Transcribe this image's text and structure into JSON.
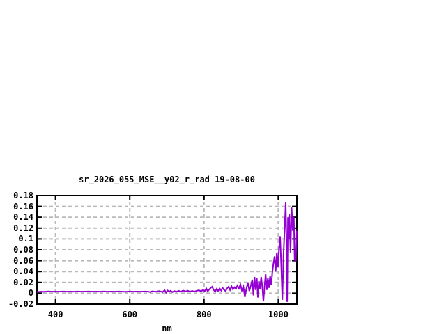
{
  "chart_data": {
    "type": "line",
    "title": "sr_2026_055_MSE__y02_r_rad 19-08-00",
    "xlabel": "nm",
    "ylabel": "",
    "xlim": [
      350,
      1050
    ],
    "ylim": [
      -0.02,
      0.18
    ],
    "xticks": [
      400,
      600,
      800,
      1000
    ],
    "xtick_labels": [
      "400",
      "600",
      "800",
      "1000"
    ],
    "yticks": [
      -0.02,
      0,
      0.02,
      0.04,
      0.06,
      0.08,
      0.1,
      0.12,
      0.14,
      0.16,
      0.18
    ],
    "ytick_labels": [
      "-0.02",
      "0",
      "0.02",
      "0.04",
      "0.06",
      "0.08",
      "0.1",
      "0.12",
      "0.14",
      "0.16",
      "0.18"
    ],
    "grid": true,
    "legend": "none",
    "colors": {
      "line": "#9400d3",
      "frame": "#000000",
      "grid": "#b9b9b9",
      "text": "#000000",
      "background": "#ffffff"
    },
    "series": [
      {
        "name": "sr_2026_055_MSE__y02_r_rad",
        "x": [
          350,
          360,
          370,
          380,
          390,
          400,
          410,
          420,
          430,
          440,
          450,
          460,
          470,
          480,
          490,
          500,
          510,
          520,
          530,
          540,
          550,
          560,
          570,
          580,
          590,
          600,
          610,
          620,
          630,
          640,
          650,
          655,
          660,
          670,
          680,
          688,
          694,
          698,
          702,
          706,
          710,
          715,
          720,
          726,
          732,
          738,
          744,
          750,
          756,
          762,
          768,
          774,
          780,
          786,
          792,
          797,
          802,
          806,
          810,
          814,
          818,
          822,
          826,
          830,
          834,
          838,
          842,
          846,
          850,
          854,
          858,
          862,
          866,
          870,
          874,
          878,
          882,
          886,
          890,
          894,
          898,
          902,
          906,
          910,
          914,
          918,
          922,
          926,
          930,
          933,
          936,
          939,
          942,
          945,
          948,
          951,
          954,
          957,
          960,
          963,
          966,
          969,
          972,
          975,
          978,
          981,
          984,
          987,
          990,
          993,
          996,
          999,
          1002,
          1005,
          1008,
          1011,
          1014,
          1017,
          1020,
          1022,
          1024,
          1026,
          1028,
          1030,
          1033,
          1036,
          1039,
          1042,
          1044,
          1047,
          1050
        ],
        "y": [
          0.002,
          0.003,
          0.0028,
          0.0033,
          0.003,
          0.0031,
          0.003,
          0.0032,
          0.003,
          0.0031,
          0.003,
          0.0032,
          0.003,
          0.0031,
          0.0032,
          0.003,
          0.0031,
          0.003,
          0.0032,
          0.003,
          0.0031,
          0.003,
          0.0032,
          0.003,
          0.0028,
          0.0032,
          0.003,
          0.0031,
          0.003,
          0.0032,
          0.003,
          0.0022,
          0.0035,
          0.0028,
          0.004,
          0.002,
          0.0055,
          0.001,
          0.005,
          0.0025,
          0.0045,
          0.002,
          0.004,
          0.0028,
          0.0045,
          0.003,
          0.005,
          0.0032,
          0.0048,
          0.0028,
          0.0042,
          0.003,
          0.0045,
          0.0055,
          0.0035,
          0.006,
          0.004,
          0.009,
          0.0035,
          0.007,
          0.01,
          0.012,
          0.006,
          0.003,
          0.008,
          0.004,
          0.009,
          0.005,
          0.01,
          0.006,
          0.004,
          0.009,
          0.012,
          0.006,
          0.013,
          0.007,
          0.011,
          0.008,
          0.014,
          0.009,
          0.016,
          0.005,
          0.012,
          -0.007,
          0.008,
          0.02,
          0.004,
          0.014,
          0.025,
          -0.004,
          0.03,
          0.006,
          0.028,
          -0.008,
          0.022,
          0.008,
          0.03,
          0.012,
          -0.015,
          0.012,
          0.035,
          0.006,
          0.028,
          0.01,
          0.032,
          0.015,
          0.038,
          0.055,
          0.068,
          0.04,
          0.075,
          0.048,
          0.082,
          0.105,
          0.048,
          -0.012,
          0.07,
          0.118,
          0.167,
          0.09,
          -0.016,
          0.14,
          0.1,
          0.146,
          0.075,
          0.158,
          0.115,
          0.14,
          0.062,
          0.058,
          0.115
        ]
      }
    ]
  }
}
